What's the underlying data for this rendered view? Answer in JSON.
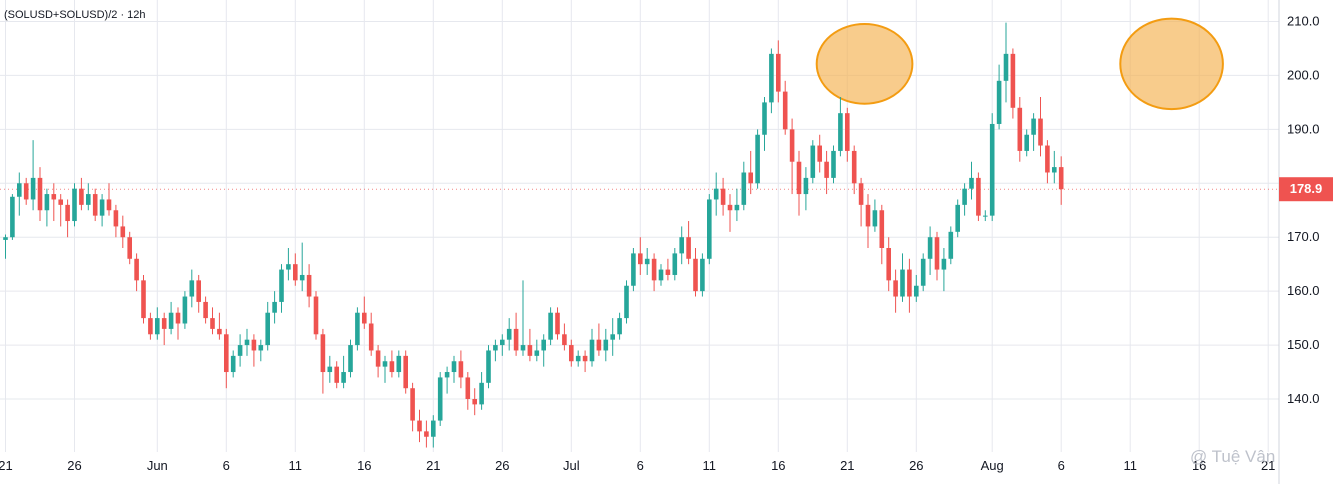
{
  "symbol_label": "(SOLUSD+SOLUSD)/2 · 12h",
  "watermark": "@ Tuệ Vân",
  "last_price_label": "178.9",
  "colors": {
    "up": "#26a69a",
    "down": "#ef5350",
    "grid": "#e6e8ee",
    "axis_text": "#131722",
    "highlight_fill": "#f5b04f",
    "highlight_stroke": "#f39c12",
    "last_price_bg": "#ef5350"
  },
  "chart_data": {
    "type": "candlestick",
    "title": "",
    "xlabel": "",
    "ylabel": "",
    "y_axis_position": "right",
    "ylim": [
      130,
      212
    ],
    "grid": true,
    "y_ticks": [
      {
        "value": 210,
        "label": "210.0"
      },
      {
        "value": 200,
        "label": "200.0"
      },
      {
        "value": 190,
        "label": "190.0"
      },
      {
        "value": 170,
        "label": "170.0"
      },
      {
        "value": 160,
        "label": "160.0"
      },
      {
        "value": 150,
        "label": "150.0"
      },
      {
        "value": 140,
        "label": "140.0"
      }
    ],
    "x_ticks": [
      {
        "index": 0,
        "label": "21"
      },
      {
        "index": 10,
        "label": "26"
      },
      {
        "index": 22,
        "label": "Jun"
      },
      {
        "index": 32,
        "label": "6"
      },
      {
        "index": 42,
        "label": "11"
      },
      {
        "index": 52,
        "label": "16"
      },
      {
        "index": 62,
        "label": "21"
      },
      {
        "index": 72,
        "label": "26"
      },
      {
        "index": 82,
        "label": "Jul"
      },
      {
        "index": 92,
        "label": "6"
      },
      {
        "index": 102,
        "label": "11"
      },
      {
        "index": 112,
        "label": "16"
      },
      {
        "index": 122,
        "label": "21"
      },
      {
        "index": 132,
        "label": "26"
      },
      {
        "index": 143,
        "label": "Aug"
      },
      {
        "index": 153,
        "label": "6"
      },
      {
        "index": 163,
        "label": "11"
      },
      {
        "index": 173,
        "label": "16"
      },
      {
        "index": 183,
        "label": "21"
      }
    ],
    "highlights": [
      {
        "from_index": 118,
        "to_index": 131,
        "from_value": 195.5,
        "to_value": 208.8
      },
      {
        "from_index": 162,
        "to_index": 176,
        "from_value": 194.5,
        "to_value": 209.8
      }
    ],
    "last_price": 178.9,
    "candles": [
      [
        169.5,
        170.5,
        166,
        170
      ],
      [
        170,
        178,
        169.5,
        177.5
      ],
      [
        177.5,
        182,
        174,
        180
      ],
      [
        180,
        181,
        176,
        177
      ],
      [
        177,
        188,
        175,
        181
      ],
      [
        181,
        183,
        173,
        175
      ],
      [
        175,
        179,
        172,
        178
      ],
      [
        178,
        180,
        173,
        177
      ],
      [
        177,
        178,
        172,
        176
      ],
      [
        176,
        177,
        170,
        173
      ],
      [
        173,
        180,
        172,
        179
      ],
      [
        179,
        181,
        175,
        176
      ],
      [
        176,
        180,
        175,
        178
      ],
      [
        178,
        179,
        173,
        174
      ],
      [
        174,
        178,
        172,
        177
      ],
      [
        177,
        180,
        174,
        175
      ],
      [
        175,
        176,
        170,
        172
      ],
      [
        172,
        174,
        168,
        170
      ],
      [
        170,
        171,
        165,
        166
      ],
      [
        166,
        167,
        160,
        162
      ],
      [
        162,
        163,
        154,
        155
      ],
      [
        155,
        156,
        151,
        152
      ],
      [
        152,
        157,
        151,
        155
      ],
      [
        155,
        156,
        150,
        153
      ],
      [
        153,
        158,
        152,
        156
      ],
      [
        156,
        157,
        151,
        154
      ],
      [
        154,
        160,
        153,
        159
      ],
      [
        159,
        164,
        157,
        162
      ],
      [
        162,
        163,
        156,
        158
      ],
      [
        158,
        159,
        154,
        155
      ],
      [
        155,
        157,
        152,
        153
      ],
      [
        153,
        156,
        151,
        152
      ],
      [
        152,
        153,
        142,
        145
      ],
      [
        145,
        149,
        144,
        148
      ],
      [
        148,
        152,
        146,
        150
      ],
      [
        150,
        153,
        148,
        151
      ],
      [
        151,
        152,
        146,
        149
      ],
      [
        149,
        151,
        147,
        150
      ],
      [
        150,
        158,
        149,
        156
      ],
      [
        156,
        160,
        154,
        158
      ],
      [
        158,
        165,
        156,
        164
      ],
      [
        164,
        168,
        162,
        165
      ],
      [
        165,
        167,
        161,
        162
      ],
      [
        162,
        169,
        160,
        163
      ],
      [
        163,
        165,
        157,
        159
      ],
      [
        159,
        160,
        151,
        152
      ],
      [
        152,
        153,
        141,
        145
      ],
      [
        145,
        148,
        143,
        146
      ],
      [
        146,
        147,
        142,
        143
      ],
      [
        143,
        148,
        142,
        145
      ],
      [
        145,
        151,
        144,
        150
      ],
      [
        150,
        157,
        149,
        156
      ],
      [
        156,
        159,
        153,
        154
      ],
      [
        154,
        156,
        148,
        149
      ],
      [
        149,
        150,
        144,
        146
      ],
      [
        146,
        148,
        143,
        147
      ],
      [
        147,
        149,
        144,
        145
      ],
      [
        145,
        149,
        144,
        148
      ],
      [
        148,
        149,
        141,
        142
      ],
      [
        142,
        143,
        134,
        136
      ],
      [
        136,
        138,
        132,
        134
      ],
      [
        134,
        136,
        131,
        133
      ],
      [
        133,
        137,
        131,
        136
      ],
      [
        136,
        145,
        135,
        144
      ],
      [
        144,
        146,
        141,
        145
      ],
      [
        145,
        148,
        143,
        147
      ],
      [
        147,
        149,
        142,
        144
      ],
      [
        144,
        145,
        138,
        140
      ],
      [
        140,
        142,
        137,
        139
      ],
      [
        139,
        145,
        138,
        143
      ],
      [
        143,
        150,
        142,
        149
      ],
      [
        149,
        151,
        147,
        150
      ],
      [
        150,
        152,
        148,
        151
      ],
      [
        151,
        155,
        149,
        153
      ],
      [
        153,
        156,
        148,
        149
      ],
      [
        149,
        162,
        148,
        150
      ],
      [
        150,
        153,
        147,
        148
      ],
      [
        148,
        151,
        147,
        149
      ],
      [
        149,
        152,
        146,
        151
      ],
      [
        151,
        157,
        150,
        156
      ],
      [
        156,
        157,
        151,
        152
      ],
      [
        152,
        154,
        149,
        150
      ],
      [
        150,
        151,
        146,
        147
      ],
      [
        147,
        149,
        146,
        148
      ],
      [
        148,
        149,
        145,
        147
      ],
      [
        147,
        153,
        146,
        151
      ],
      [
        151,
        154,
        148,
        149
      ],
      [
        149,
        153,
        147,
        151
      ],
      [
        151,
        155,
        148,
        152
      ],
      [
        152,
        156,
        151,
        155
      ],
      [
        155,
        162,
        154,
        161
      ],
      [
        161,
        168,
        160,
        167
      ],
      [
        167,
        170,
        163,
        165
      ],
      [
        165,
        168,
        163,
        166
      ],
      [
        166,
        167,
        160,
        162
      ],
      [
        162,
        165,
        161,
        164
      ],
      [
        164,
        166,
        162,
        163
      ],
      [
        163,
        168,
        162,
        167
      ],
      [
        167,
        172,
        165,
        170
      ],
      [
        170,
        173,
        165,
        166
      ],
      [
        166,
        168,
        159,
        160
      ],
      [
        160,
        167,
        159,
        166
      ],
      [
        166,
        178,
        165,
        177
      ],
      [
        177,
        182,
        174,
        179
      ],
      [
        179,
        181,
        174,
        176
      ],
      [
        176,
        178,
        171,
        175
      ],
      [
        175,
        179,
        173,
        176
      ],
      [
        176,
        184,
        175,
        182
      ],
      [
        182,
        186,
        178,
        180
      ],
      [
        180,
        190,
        179,
        189
      ],
      [
        189,
        196,
        186,
        195
      ],
      [
        195,
        205,
        193,
        204
      ],
      [
        204,
        206.5,
        195,
        197
      ],
      [
        197,
        199,
        189,
        190
      ],
      [
        190,
        192,
        178,
        184
      ],
      [
        184,
        186,
        174,
        178
      ],
      [
        178,
        183,
        175,
        181
      ],
      [
        181,
        188,
        180,
        187
      ],
      [
        187,
        189,
        182,
        184
      ],
      [
        184,
        186,
        178,
        181
      ],
      [
        181,
        187,
        180,
        186
      ],
      [
        186,
        196,
        185,
        193
      ],
      [
        193,
        194,
        184,
        186
      ],
      [
        186,
        187,
        178,
        180
      ],
      [
        180,
        181,
        172,
        176
      ],
      [
        176,
        178,
        168,
        172
      ],
      [
        172,
        177,
        171,
        175
      ],
      [
        175,
        176,
        165,
        168
      ],
      [
        168,
        170,
        160,
        162
      ],
      [
        162,
        164,
        156,
        159
      ],
      [
        159,
        167,
        158,
        164
      ],
      [
        164,
        166,
        156,
        159
      ],
      [
        159,
        163,
        158,
        161
      ],
      [
        161,
        167,
        160,
        166
      ],
      [
        166,
        172,
        163,
        170
      ],
      [
        170,
        171,
        162,
        164
      ],
      [
        164,
        168,
        160,
        166
      ],
      [
        166,
        172,
        165,
        171
      ],
      [
        171,
        177,
        170,
        176
      ],
      [
        176,
        180,
        174,
        179
      ],
      [
        179,
        184,
        177,
        181
      ],
      [
        181,
        182,
        173,
        174
      ],
      [
        174,
        175,
        173,
        174
      ],
      [
        174,
        193,
        173,
        191
      ],
      [
        191,
        202,
        190,
        199
      ],
      [
        199,
        209.8,
        195,
        204
      ],
      [
        204,
        205,
        192,
        194
      ],
      [
        194,
        196,
        184,
        186
      ],
      [
        186,
        190,
        185,
        189
      ],
      [
        189,
        193,
        186,
        192
      ],
      [
        192,
        196,
        185,
        187
      ],
      [
        187,
        188,
        180,
        182
      ],
      [
        182,
        186,
        180,
        183
      ],
      [
        183,
        185,
        176,
        178.9
      ]
    ]
  }
}
